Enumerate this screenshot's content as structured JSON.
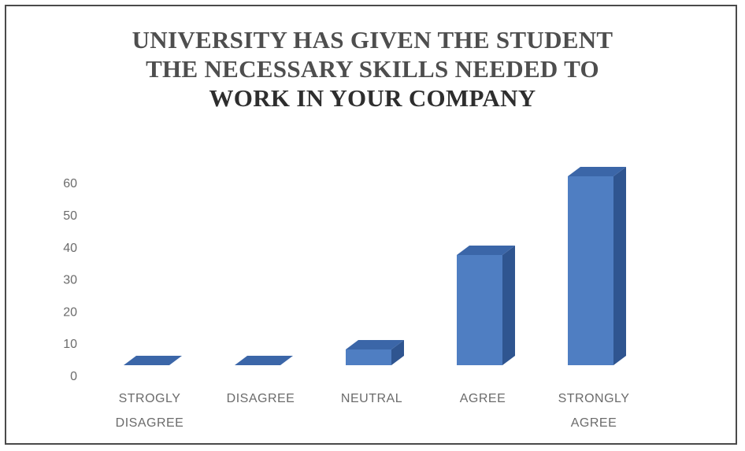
{
  "chart_data": {
    "type": "bar",
    "title_lines": [
      "UNIVERSITY HAS GIVEN THE STUDENT",
      "THE NECESSARY SKILLS NEEDED TO",
      "WORK IN YOUR COMPANY"
    ],
    "categories": [
      [
        "STROGLY",
        "DISAGREE"
      ],
      [
        "DISAGREE"
      ],
      [
        "NEUTRAL"
      ],
      [
        "AGREE"
      ],
      [
        "STRONGLY",
        "AGREE"
      ]
    ],
    "values": [
      0,
      0,
      5,
      35,
      60
    ],
    "y_ticks": [
      0,
      10,
      20,
      30,
      40,
      50,
      60
    ],
    "ylim": [
      0,
      60
    ],
    "grid": false,
    "legend": "none",
    "bar_style": "3d",
    "colors": {
      "bar_front": "#4f7ec2",
      "bar_top": "#3b66a8",
      "bar_side": "#2f5590",
      "tick_text": "#6b6b6b"
    }
  }
}
